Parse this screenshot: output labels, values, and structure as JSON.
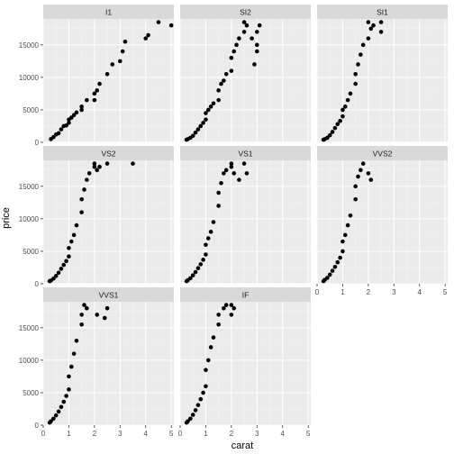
{
  "chart_data": {
    "type": "scatter",
    "xlabel": "carat",
    "ylabel": "price",
    "xlim": [
      0,
      5.1
    ],
    "ylim": [
      0,
      19000
    ],
    "x_ticks": [
      0,
      1,
      2,
      3,
      4,
      5
    ],
    "y_ticks": [
      0,
      5000,
      10000,
      15000
    ],
    "y_tick_labels": [
      "0",
      "5000",
      "10000",
      "15000"
    ],
    "grid": true,
    "legend": "none",
    "point_color": "#000000",
    "panel_background": "#ebebeb",
    "strip_background": "#d9d9d9",
    "facets": [
      {
        "label": "I1",
        "x": [
          0.3,
          0.4,
          0.5,
          0.6,
          0.7,
          0.8,
          0.9,
          1.0,
          1.0,
          1.1,
          1.2,
          1.3,
          1.5,
          1.5,
          1.7,
          2.0,
          2.0,
          2.1,
          2.2,
          2.5,
          2.7,
          3.0,
          3.1,
          3.2,
          4.0,
          4.1,
          4.5,
          5.0
        ],
        "y": [
          500,
          800,
          1200,
          1400,
          2000,
          2500,
          2600,
          3000,
          3500,
          3800,
          4200,
          4600,
          5000,
          5500,
          6500,
          6500,
          7500,
          8000,
          9000,
          10500,
          12000,
          12500,
          14000,
          15500,
          16000,
          16500,
          18500,
          18000
        ]
      },
      {
        "label": "SI2",
        "x": [
          0.25,
          0.3,
          0.4,
          0.5,
          0.6,
          0.7,
          0.8,
          0.9,
          1.0,
          1.0,
          1.1,
          1.2,
          1.3,
          1.5,
          1.5,
          1.6,
          1.7,
          1.8,
          2.0,
          2.0,
          2.1,
          2.2,
          2.3,
          2.5,
          2.5,
          2.6,
          2.8,
          3.0,
          3.0,
          3.0,
          2.9,
          3.1
        ],
        "y": [
          400,
          500,
          700,
          1000,
          1500,
          2000,
          2500,
          3000,
          3500,
          4500,
          5000,
          5500,
          6000,
          6500,
          8000,
          9000,
          9500,
          10500,
          11000,
          13000,
          14000,
          15000,
          16000,
          17000,
          18500,
          18000,
          16000,
          14000,
          15000,
          17000,
          12000,
          18000
        ]
      },
      {
        "label": "SI1",
        "x": [
          0.25,
          0.3,
          0.4,
          0.5,
          0.6,
          0.7,
          0.8,
          0.9,
          1.0,
          1.0,
          1.1,
          1.2,
          1.3,
          1.5,
          1.5,
          1.6,
          1.7,
          1.8,
          2.0,
          2.0,
          2.1,
          2.2,
          2.5,
          2.5
        ],
        "y": [
          400,
          500,
          700,
          1100,
          1600,
          2200,
          2800,
          3300,
          4000,
          5000,
          5500,
          6500,
          7500,
          9000,
          10500,
          12000,
          13500,
          15000,
          16000,
          18500,
          17500,
          18000,
          18500,
          17000
        ]
      },
      {
        "label": "VS2",
        "x": [
          0.25,
          0.3,
          0.4,
          0.5,
          0.6,
          0.7,
          0.8,
          0.9,
          1.0,
          1.0,
          1.1,
          1.2,
          1.3,
          1.5,
          1.5,
          1.6,
          1.7,
          1.8,
          2.0,
          2.0,
          2.1,
          2.2,
          2.5,
          3.5
        ],
        "y": [
          400,
          500,
          800,
          1200,
          1700,
          2300,
          2900,
          3500,
          4200,
          5500,
          6500,
          7500,
          9000,
          11000,
          13000,
          14500,
          16000,
          17000,
          18000,
          18500,
          17500,
          18000,
          18500,
          18500
        ]
      },
      {
        "label": "VS1",
        "x": [
          0.25,
          0.3,
          0.4,
          0.5,
          0.6,
          0.7,
          0.8,
          0.9,
          1.0,
          1.0,
          1.1,
          1.2,
          1.3,
          1.5,
          1.5,
          1.6,
          1.7,
          1.8,
          2.0,
          2.0,
          2.1,
          2.3,
          2.5,
          2.6
        ],
        "y": [
          400,
          550,
          850,
          1300,
          1800,
          2400,
          3000,
          3700,
          4500,
          6000,
          7000,
          8000,
          9500,
          12000,
          14000,
          15500,
          17000,
          17500,
          18500,
          18000,
          17000,
          16000,
          18500,
          17000
        ]
      },
      {
        "label": "VVS2",
        "x": [
          0.25,
          0.3,
          0.4,
          0.5,
          0.6,
          0.7,
          0.8,
          0.9,
          1.0,
          1.0,
          1.1,
          1.2,
          1.3,
          1.5,
          1.5,
          1.6,
          1.7,
          1.8,
          2.0,
          2.1
        ],
        "y": [
          400,
          600,
          900,
          1400,
          2000,
          2600,
          3300,
          4000,
          5000,
          6500,
          7500,
          9000,
          10500,
          13000,
          15000,
          16500,
          17500,
          18500,
          17000,
          16000
        ]
      },
      {
        "label": "VVS1",
        "x": [
          0.25,
          0.3,
          0.4,
          0.5,
          0.6,
          0.7,
          0.8,
          0.9,
          1.0,
          1.0,
          1.1,
          1.2,
          1.3,
          1.5,
          1.5,
          1.6,
          1.7,
          2.1,
          2.4,
          2.5
        ],
        "y": [
          400,
          600,
          1000,
          1500,
          2100,
          2800,
          3600,
          4500,
          5500,
          7500,
          9000,
          11000,
          13000,
          15500,
          17000,
          18500,
          18000,
          17000,
          16500,
          18000
        ]
      },
      {
        "label": "IF",
        "x": [
          0.25,
          0.3,
          0.4,
          0.5,
          0.6,
          0.7,
          0.8,
          0.9,
          1.0,
          1.0,
          1.1,
          1.2,
          1.3,
          1.5,
          1.5,
          1.7,
          1.8,
          2.0,
          2.0,
          2.1
        ],
        "y": [
          400,
          600,
          1000,
          1600,
          2300,
          3100,
          4000,
          5000,
          6000,
          8500,
          10000,
          12000,
          13500,
          15500,
          17000,
          18000,
          18500,
          17000,
          18500,
          18000
        ]
      }
    ]
  }
}
